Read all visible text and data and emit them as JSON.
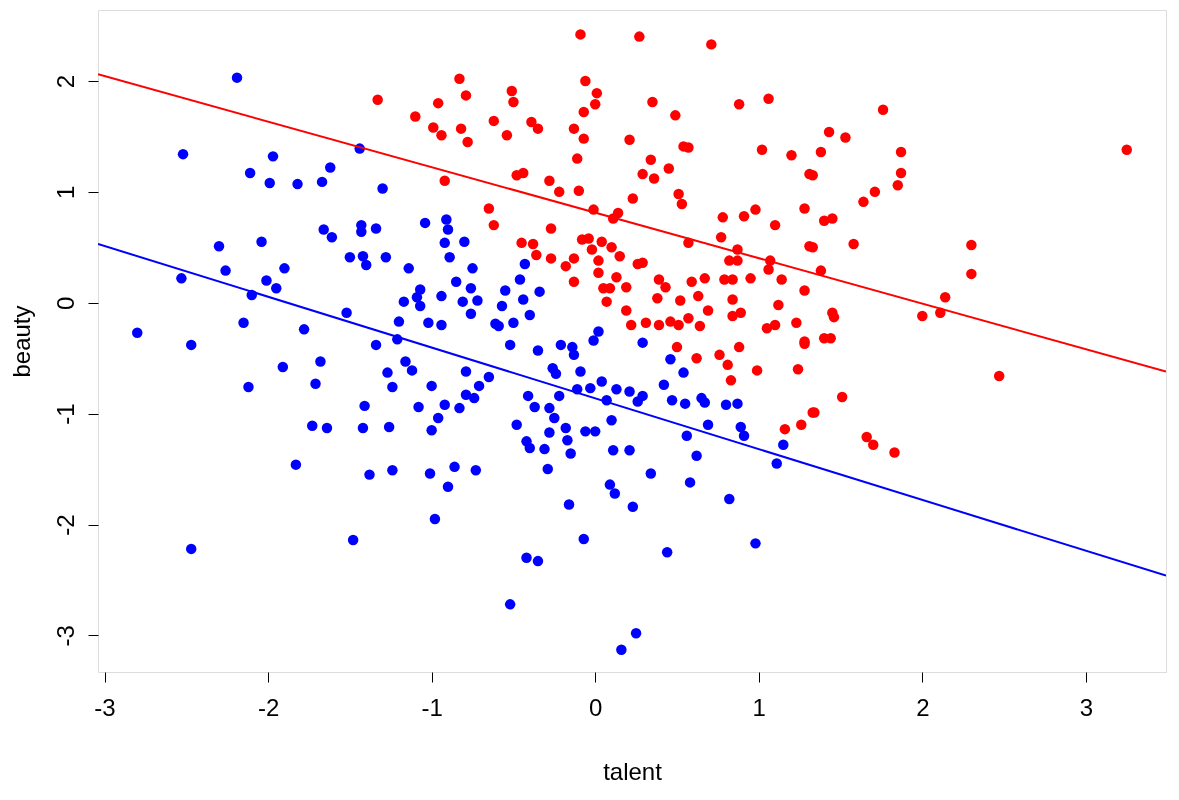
{
  "chart_data": {
    "type": "scatter",
    "xlabel": "talent",
    "ylabel": "beauty",
    "xlim": [
      -3.04,
      3.49
    ],
    "ylim": [
      -3.33,
      2.64
    ],
    "xticks": [
      -3,
      -2,
      -1,
      0,
      1,
      2,
      3
    ],
    "yticks": [
      -3,
      -2,
      -1,
      0,
      1,
      2
    ],
    "grid": false,
    "marker": "circle",
    "series": [
      {
        "color": "#0000ff",
        "x": [
          -2.8,
          -2.52,
          -2.53,
          -2.47,
          -2.47,
          -2.3,
          -2.26,
          -2.19,
          -2.15,
          -2.11,
          -2.12,
          -2.1,
          -2.04,
          -2.01,
          -1.97,
          -1.99,
          -1.95,
          -1.9,
          -1.91,
          -1.82,
          -1.83,
          -1.78,
          -1.73,
          -1.71,
          -1.68,
          -1.67,
          -1.66,
          -1.64,
          -1.62,
          -1.61,
          -1.52,
          -1.5,
          -1.48,
          -1.44,
          -1.43,
          -1.43,
          -1.42,
          -1.42,
          -1.41,
          -1.4,
          -1.38,
          -1.34,
          -1.34,
          -1.3,
          -1.28,
          -1.27,
          -1.26,
          -1.24,
          -1.24,
          -1.21,
          -1.2,
          -1.17,
          -1.16,
          -1.14,
          -1.12,
          -1.09,
          -1.08,
          -1.07,
          -1.07,
          -1.04,
          -1.02,
          -1.01,
          -1.0,
          -1.0,
          -0.98,
          -0.96,
          -0.94,
          -0.94,
          -0.92,
          -0.92,
          -0.91,
          -0.9,
          -0.9,
          -0.89,
          -0.86,
          -0.85,
          -0.83,
          -0.81,
          -0.8,
          -0.79,
          -0.79,
          -0.76,
          -0.76,
          -0.75,
          -0.74,
          -0.73,
          -0.72,
          -0.71,
          -0.65,
          -0.61,
          -0.59,
          -0.57,
          -0.55,
          -0.52,
          -0.52,
          -0.5,
          -0.48,
          -0.46,
          -0.44,
          -0.43,
          -0.42,
          -0.42,
          -0.41,
          -0.4,
          -0.4,
          -0.37,
          -0.35,
          -0.35,
          -0.34,
          -0.31,
          -0.29,
          -0.28,
          -0.28,
          -0.26,
          -0.25,
          -0.24,
          -0.22,
          -0.21,
          -0.18,
          -0.17,
          -0.16,
          -0.15,
          -0.14,
          -0.13,
          -0.11,
          -0.09,
          -0.07,
          -0.06,
          -0.03,
          -0.01,
          0.0,
          0.02,
          0.04,
          0.07,
          0.09,
          0.11,
          0.1,
          0.12,
          0.13,
          0.16,
          0.21,
          0.21,
          0.23,
          0.25,
          0.26,
          0.29,
          0.29,
          0.34,
          0.42,
          0.44,
          0.46,
          0.47,
          0.54,
          0.55,
          0.56,
          0.58,
          0.62,
          0.65,
          0.67,
          0.69,
          0.8,
          0.82,
          0.87,
          0.89,
          0.91,
          0.98,
          1.11,
          1.15
        ],
        "values": [
          -0.27,
          1.34,
          0.22,
          -0.38,
          -2.22,
          0.51,
          0.29,
          2.03,
          -0.18,
          1.17,
          -0.76,
          0.07,
          0.55,
          0.2,
          1.32,
          1.08,
          0.13,
          0.31,
          -0.58,
          1.07,
          -1.46,
          -0.24,
          -1.11,
          -0.73,
          -0.53,
          1.09,
          0.66,
          -1.13,
          1.22,
          0.59,
          -0.09,
          0.41,
          -2.14,
          1.39,
          0.64,
          0.7,
          0.42,
          -1.13,
          -0.93,
          0.34,
          -1.55,
          0.67,
          -0.38,
          1.03,
          0.41,
          -0.63,
          -1.12,
          -1.51,
          -0.76,
          -0.33,
          -0.17,
          0.01,
          -0.53,
          0.31,
          -0.61,
          0.05,
          -0.94,
          0.12,
          -0.03,
          0.72,
          -0.18,
          -1.54,
          -0.75,
          -1.15,
          -1.95,
          -1.04,
          -0.2,
          0.06,
          -0.92,
          0.54,
          0.75,
          0.66,
          -1.66,
          0.41,
          -1.48,
          0.19,
          -0.95,
          0.01,
          0.55,
          -0.83,
          -0.62,
          -0.1,
          0.13,
          0.31,
          -0.86,
          -1.51,
          0.02,
          -0.75,
          -0.67,
          -0.19,
          -0.21,
          -0.03,
          0.11,
          -2.72,
          -0.38,
          -0.18,
          -1.1,
          0.21,
          0.03,
          0.35,
          -2.3,
          -1.25,
          -0.84,
          -0.11,
          -1.31,
          -0.94,
          -2.33,
          -0.43,
          0.1,
          -1.32,
          -1.5,
          -1.17,
          -0.95,
          -0.59,
          -1.04,
          -0.64,
          -0.84,
          -0.38,
          -1.13,
          -1.24,
          -1.82,
          -1.36,
          -0.4,
          -0.47,
          -0.78,
          -0.62,
          -2.13,
          -1.16,
          -0.77,
          -0.34,
          -1.16,
          -0.26,
          -0.71,
          -0.88,
          -1.64,
          -1.33,
          -1.06,
          -1.72,
          -0.78,
          -3.13,
          -0.8,
          -1.33,
          -1.84,
          -2.98,
          -0.89,
          -0.36,
          -0.84,
          -1.54,
          -0.74,
          -2.25,
          -0.51,
          -0.88,
          -0.63,
          -0.91,
          -1.2,
          -1.62,
          -1.38,
          -0.86,
          -0.9,
          -1.1,
          -0.92,
          -1.77,
          -0.91,
          -1.12,
          -1.2,
          -2.17,
          -1.45,
          -1.28
        ]
      },
      {
        "color": "#ff0000",
        "x": [
          -1.33,
          -1.1,
          -0.96,
          -0.99,
          -0.94,
          -0.92,
          -0.83,
          -0.79,
          -0.51,
          -0.5,
          -0.62,
          -0.82,
          -0.78,
          -0.54,
          -0.39,
          -0.35,
          -0.09,
          -0.06,
          0.01,
          0.0,
          -0.07,
          -0.13,
          -0.07,
          -0.11,
          0.21,
          0.27,
          0.71,
          0.35,
          0.49,
          0.88,
          1.06,
          0.54,
          0.57,
          1.02,
          1.2,
          0.34,
          0.45,
          0.29,
          0.36,
          1.31,
          -0.48,
          -0.44,
          -0.28,
          -0.22,
          -0.1,
          0.23,
          0.51,
          0.53,
          -0.65,
          -0.62,
          -0.27,
          -0.01,
          0.14,
          0.11,
          0.78,
          0.77,
          0.91,
          0.98,
          1.1,
          1.28,
          0.57,
          -0.45,
          -0.38,
          -0.36,
          -0.27,
          -0.18,
          -0.13,
          -0.08,
          -0.04,
          -0.02,
          0.04,
          0.02,
          0.1,
          0.15,
          0.02,
          -0.13,
          0.13,
          0.05,
          0.09,
          0.19,
          0.07,
          0.26,
          0.29,
          0.19,
          0.22,
          0.31,
          0.39,
          0.43,
          0.38,
          0.52,
          0.39,
          0.46,
          0.51,
          0.57,
          0.64,
          0.59,
          0.67,
          0.63,
          0.69,
          0.79,
          0.84,
          0.82,
          0.87,
          0.87,
          0.95,
          0.84,
          0.89,
          0.84,
          1.07,
          1.06,
          1.14,
          1.12,
          1.28,
          1.31,
          1.1,
          1.23,
          1.05,
          1.28,
          0.5,
          0.62,
          0.76,
          0.81,
          0.83,
          0.88,
          0.99,
          1.28,
          1.24,
          1.33,
          1.26,
          1.16,
          1.76,
          1.43,
          1.53,
          1.38,
          1.87,
          1.87,
          1.85,
          1.33,
          1.71,
          1.64,
          1.4,
          1.45,
          1.58,
          1.33,
          1.38,
          3.25,
          2.3,
          2.3,
          2.14,
          2.11,
          2.0,
          1.45,
          1.46,
          1.4,
          1.44,
          2.47,
          1.51,
          1.34,
          1.66,
          1.7,
          1.83
        ],
        "values": [
          1.83,
          1.68,
          1.8,
          1.58,
          1.51,
          1.1,
          2.02,
          1.87,
          1.91,
          1.81,
          1.64,
          1.57,
          1.45,
          1.51,
          1.63,
          1.57,
          2.42,
          2.0,
          1.89,
          1.79,
          1.72,
          1.57,
          1.48,
          1.3,
          1.47,
          2.4,
          2.33,
          1.81,
          1.69,
          1.79,
          1.84,
          1.41,
          1.4,
          1.38,
          1.33,
          1.29,
          1.21,
          1.16,
          1.12,
          1.16,
          1.15,
          1.17,
          1.1,
          1.0,
          1.01,
          0.94,
          0.98,
          0.89,
          0.85,
          0.7,
          0.67,
          0.84,
          0.81,
          0.76,
          0.77,
          0.59,
          0.78,
          0.84,
          0.7,
          0.85,
          0.54,
          0.54,
          0.53,
          0.43,
          0.4,
          0.33,
          0.4,
          0.57,
          0.58,
          0.48,
          0.55,
          0.38,
          0.5,
          0.42,
          0.27,
          0.19,
          0.23,
          0.13,
          0.13,
          0.14,
          0.01,
          0.35,
          0.36,
          -0.07,
          -0.2,
          -0.18,
          0.21,
          0.14,
          0.04,
          0.02,
          -0.2,
          -0.17,
          -0.2,
          -0.14,
          -0.21,
          0.19,
          0.22,
          0.06,
          -0.07,
          0.21,
          0.21,
          0.38,
          0.38,
          0.48,
          0.22,
          0.03,
          -0.09,
          -0.12,
          0.38,
          0.3,
          0.21,
          -0.02,
          0.11,
          0.51,
          -0.2,
          -0.18,
          -0.23,
          -0.35,
          -0.4,
          -0.5,
          -0.47,
          -0.56,
          -0.7,
          -0.4,
          -0.61,
          -0.37,
          -0.6,
          -0.99,
          -1.1,
          -1.14,
          1.74,
          1.54,
          1.49,
          1.36,
          1.36,
          1.17,
          1.06,
          1.15,
          1.0,
          0.91,
          0.74,
          0.76,
          0.53,
          0.5,
          0.29,
          1.38,
          0.52,
          0.26,
          0.05,
          -0.09,
          -0.12,
          -0.09,
          -0.13,
          -0.32,
          -0.32,
          -0.66,
          -0.85,
          -0.99,
          -1.21,
          -1.28,
          -1.35
        ]
      },
      {
        "type": "line",
        "marker": "none",
        "line_style": "solid",
        "color": "#ff0000",
        "x": [
          -3.04,
          3.49
        ],
        "values": [
          2.06,
          -0.62
        ]
      },
      {
        "type": "line",
        "marker": "none",
        "line_style": "solid",
        "color": "#0000ff",
        "x": [
          -3.04,
          3.49
        ],
        "values": [
          0.53,
          -2.46
        ]
      }
    ]
  }
}
